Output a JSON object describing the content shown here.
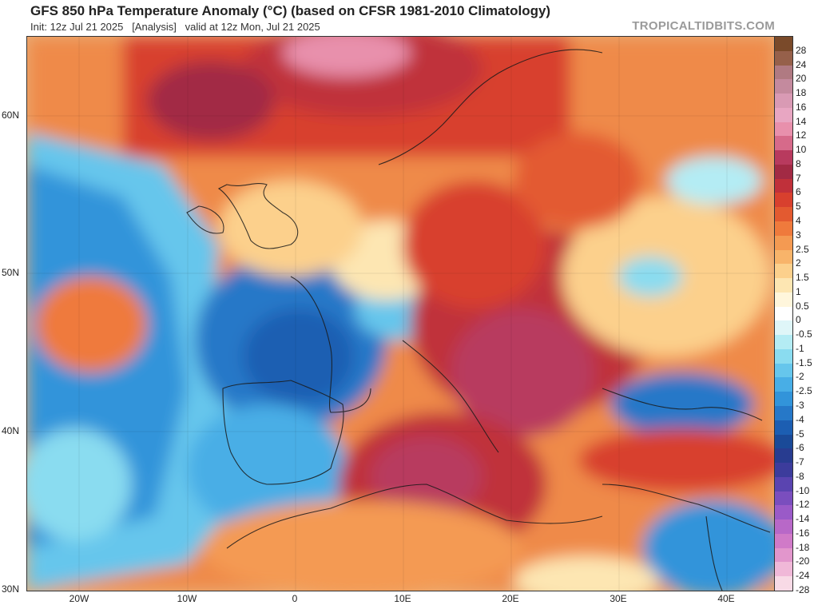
{
  "header": {
    "title": "GFS 850 hPa Temperature Anomaly (°C) (based on CFSR 1981-2010 Climatology)",
    "subtitle": "Init: 12z Jul 21 2025   [Analysis]   valid at 12z Mon, Jul 21 2025",
    "brand": "TROPICALTIDBITS.COM"
  },
  "axes": {
    "lat_labels": [
      "60N",
      "50N",
      "40N",
      "30N"
    ],
    "lon_labels": [
      "20W",
      "10W",
      "0",
      "10E",
      "20E",
      "30E",
      "40E"
    ]
  },
  "legend": {
    "items": [
      {
        "label": "28",
        "color": "#7a4a2a"
      },
      {
        "label": "24",
        "color": "#96604a"
      },
      {
        "label": "20",
        "color": "#b07a82"
      },
      {
        "label": "18",
        "color": "#c48a9e"
      },
      {
        "label": "16",
        "color": "#d99ab4"
      },
      {
        "label": "14",
        "color": "#e8a6c2"
      },
      {
        "label": "12",
        "color": "#e890ac"
      },
      {
        "label": "10",
        "color": "#d66a8a"
      },
      {
        "label": "8",
        "color": "#b83a5e"
      },
      {
        "label": "7",
        "color": "#a22a44"
      },
      {
        "label": "6",
        "color": "#c0303a"
      },
      {
        "label": "5",
        "color": "#d8402e"
      },
      {
        "label": "4",
        "color": "#e35a30"
      },
      {
        "label": "3",
        "color": "#ef7a3c"
      },
      {
        "label": "2.5",
        "color": "#f49a52"
      },
      {
        "label": "2",
        "color": "#f8b46a"
      },
      {
        "label": "1.5",
        "color": "#fcd08c"
      },
      {
        "label": "1",
        "color": "#fde6b2"
      },
      {
        "label": "0.5",
        "color": "#fff6dc"
      },
      {
        "label": "0",
        "color": "#ffffff"
      },
      {
        "label": "-0.5",
        "color": "#dff6f8"
      },
      {
        "label": "-1",
        "color": "#b4ecf4"
      },
      {
        "label": "-1.5",
        "color": "#8adcf0"
      },
      {
        "label": "-2",
        "color": "#66c6ec"
      },
      {
        "label": "-2.5",
        "color": "#48aee6"
      },
      {
        "label": "-3",
        "color": "#3294da"
      },
      {
        "label": "-4",
        "color": "#2678c8"
      },
      {
        "label": "-5",
        "color": "#1c5eb2"
      },
      {
        "label": "-6",
        "color": "#1a4a98"
      },
      {
        "label": "-7",
        "color": "#283c90"
      },
      {
        "label": "-8",
        "color": "#3c3c9c"
      },
      {
        "label": "-10",
        "color": "#5a44b0"
      },
      {
        "label": "-12",
        "color": "#7a4ebe"
      },
      {
        "label": "-14",
        "color": "#9a5ac8"
      },
      {
        "label": "-16",
        "color": "#b868c8"
      },
      {
        "label": "-18",
        "color": "#d07ac8"
      },
      {
        "label": "-20",
        "color": "#e296cc"
      },
      {
        "label": "-24",
        "color": "#f0b8d8"
      },
      {
        "label": "-28",
        "color": "#f8dae6"
      }
    ]
  }
}
